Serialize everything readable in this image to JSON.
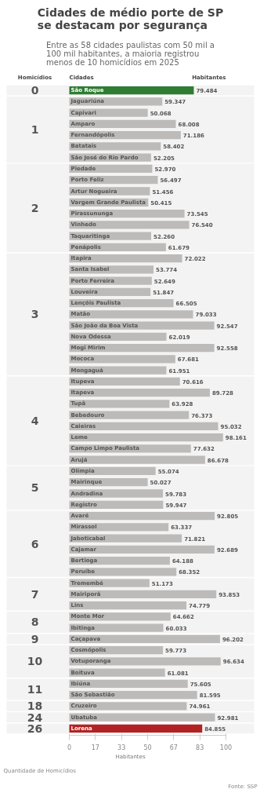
{
  "chart_data": {
    "type": "bar",
    "orientation": "horizontal",
    "title": "Cidades de médio porte de SP se destacam por segurança",
    "subtitle": "Entre as 58 cidades paulistas com 50 mil a 100 mil habitantes, a maioria registrou menos de 10 homicídios em 2025",
    "xlabel": "Habitantes",
    "categories": [
      "São Roque",
      "Jaguariúna",
      "Capivari",
      "Amparo",
      "Fernandópolis",
      "Batatais",
      "São José do Rio Pardo",
      "Piedade",
      "Porto Feliz",
      "Artur Nogueira",
      "Vargem Grande Paulista",
      "Pirassununga",
      "Vinhedo",
      "Taquaritinga",
      "Penápolis",
      "Itapira",
      "Santa Isabel",
      "Porto Ferreira",
      "Louveira",
      "Lençóis Paulista",
      "Matão",
      "São João da Boa Vista",
      "Nova Odessa",
      "Mogi Mirim",
      "Mococa",
      "Mongaguá",
      "Itupeva",
      "Itapeva",
      "Tupã",
      "Bebedouro",
      "Caieiras",
      "Leme",
      "Campo Limpo Paulista",
      "Arujá",
      "Olímpia",
      "Mairinque",
      "Andradina",
      "Registro",
      "Avaré",
      "Mirassol",
      "Jaboticabal",
      "Cajamar",
      "Bertioga",
      "Peruíbe",
      "Tremembé",
      "Mairiporã",
      "Lins",
      "Monte Mor",
      "Ibitinga",
      "Caçapava",
      "Cosmópolis",
      "Votuporanga",
      "Boituva",
      "Ibiúna",
      "São Sebastião",
      "Cruzeiro",
      "Ubatuba",
      "Lorena"
    ],
    "values": [
      79.484,
      59.347,
      50.068,
      68.008,
      71.186,
      58.402,
      52.205,
      52.97,
      56.497,
      51.456,
      50.415,
      73.545,
      76.54,
      52.26,
      61.679,
      72.022,
      53.774,
      52.649,
      51.847,
      66.505,
      79.033,
      92.547,
      62.019,
      92.558,
      67.681,
      61.951,
      70.616,
      89.728,
      63.928,
      76.373,
      95.032,
      98.161,
      77.632,
      86.678,
      55.074,
      50.027,
      59.783,
      59.947,
      92.805,
      63.337,
      71.821,
      92.689,
      64.188,
      68.352,
      51.173,
      93.853,
      74.779,
      64.662,
      60.033,
      96.202,
      59.773,
      96.634,
      61.081,
      75.605,
      81.595,
      74.961,
      92.981,
      84.855
    ],
    "value_labels": [
      "79.484",
      "59.347",
      "50.068",
      "68.008",
      "71.186",
      "58.402",
      "52.205",
      "52.970",
      "56.497",
      "51.456",
      "50.415",
      "73.545",
      "76.540",
      "52.260",
      "61.679",
      "72.022",
      "53.774",
      "52.649",
      "51.847",
      "66.505",
      "79.033",
      "92.547",
      "62.019",
      "92.558",
      "67.681",
      "61.951",
      "70.616",
      "89.728",
      "63.928",
      "76.373",
      "95.032",
      "98.161",
      "77.632",
      "86.678",
      "55.074",
      "50.027",
      "59.783",
      "59.947",
      "92.805",
      "63.337",
      "71.821",
      "92.689",
      "64.188",
      "68.352",
      "51.173",
      "93.853",
      "74.779",
      "64.662",
      "60.033",
      "96.202",
      "59.773",
      "96.634",
      "61.081",
      "75.605",
      "81.595",
      "74.961",
      "92.981",
      "84.855"
    ],
    "colors": [
      "#2e7d32",
      "#bdbbb9",
      "#bdbbb9",
      "#bdbbb9",
      "#bdbbb9",
      "#bdbbb9",
      "#bdbbb9",
      "#bdbbb9",
      "#bdbbb9",
      "#bdbbb9",
      "#bdbbb9",
      "#bdbbb9",
      "#bdbbb9",
      "#bdbbb9",
      "#bdbbb9",
      "#bdbbb9",
      "#bdbbb9",
      "#bdbbb9",
      "#bdbbb9",
      "#bdbbb9",
      "#bdbbb9",
      "#bdbbb9",
      "#bdbbb9",
      "#bdbbb9",
      "#bdbbb9",
      "#bdbbb9",
      "#bdbbb9",
      "#bdbbb9",
      "#bdbbb9",
      "#bdbbb9",
      "#bdbbb9",
      "#bdbbb9",
      "#bdbbb9",
      "#bdbbb9",
      "#bdbbb9",
      "#bdbbb9",
      "#bdbbb9",
      "#bdbbb9",
      "#bdbbb9",
      "#bdbbb9",
      "#bdbbb9",
      "#bdbbb9",
      "#bdbbb9",
      "#bdbbb9",
      "#bdbbb9",
      "#bdbbb9",
      "#bdbbb9",
      "#bdbbb9",
      "#bdbbb9",
      "#bdbbb9",
      "#bdbbb9",
      "#bdbbb9",
      "#bdbbb9",
      "#bdbbb9",
      "#bdbbb9",
      "#bdbbb9",
      "#bdbbb9",
      "#b22222"
    ],
    "xlim": [
      0,
      100
    ],
    "xticks": [
      0,
      {
        "value": 16.67,
        "label": "17"
      },
      {
        "value": 33.33,
        "label": "33"
      },
      50,
      {
        "value": 66.67,
        "label": "67"
      },
      {
        "value": 83.33,
        "label": "83"
      },
      100
    ],
    "bands": [
      {
        "axis": "y",
        "from": "São Roque",
        "to": "São Roque",
        "label": "0",
        "color": "#f3f3f3"
      },
      {
        "axis": "y",
        "from": "Jaguariúna",
        "to": "São José do Rio Pardo",
        "label": "1",
        "color": "#f3f3f3"
      },
      {
        "axis": "y",
        "from": "Piedade",
        "to": "Penápolis",
        "label": "2",
        "color": "#f3f3f3"
      },
      {
        "axis": "y",
        "from": "Itapira",
        "to": "Mongaguá",
        "label": "3",
        "color": "#f3f3f3"
      },
      {
        "axis": "y",
        "from": "Itupeva",
        "to": "Arujá",
        "label": "4",
        "color": "#f3f3f3"
      },
      {
        "axis": "y",
        "from": "Olímpia",
        "to": "Registro",
        "label": "5",
        "color": "#f3f3f3"
      },
      {
        "axis": "y",
        "from": "Avaré",
        "to": "Peruíbe",
        "label": "6",
        "color": "#f3f3f3"
      },
      {
        "axis": "y",
        "from": "Tremembé",
        "to": "Lins",
        "label": "7",
        "color": "#f3f3f3"
      },
      {
        "axis": "y",
        "from": "Monte Mor",
        "to": "Ibitinga",
        "label": "8",
        "color": "#f3f3f3"
      },
      {
        "axis": "y",
        "from": "Caçapava",
        "to": "Caçapava",
        "label": "9",
        "color": "#f3f3f3"
      },
      {
        "axis": "y",
        "from": "Cosmópolis",
        "to": "Boituva",
        "label": "10",
        "color": "#f3f3f3"
      },
      {
        "axis": "y",
        "from": "Ibiúna",
        "to": "São Sebastião",
        "label": "11",
        "color": "#f3f3f3"
      },
      {
        "axis": "y",
        "from": "Cruzeiro",
        "to": "Cruzeiro",
        "label": "18",
        "color": "#f3f3f3"
      },
      {
        "axis": "y",
        "from": "Ubatuba",
        "to": "Ubatuba",
        "label": "24",
        "color": "#f3f3f3"
      },
      {
        "axis": "y",
        "from": "Lorena",
        "to": "Lorena",
        "label": "26",
        "color": "#f3f3f3"
      }
    ],
    "annotations": [
      "Homicídios",
      "Cidades",
      "Habitantes",
      "Quantidade de Homicídios",
      "Fonte: SSP"
    ],
    "grid": false
  }
}
